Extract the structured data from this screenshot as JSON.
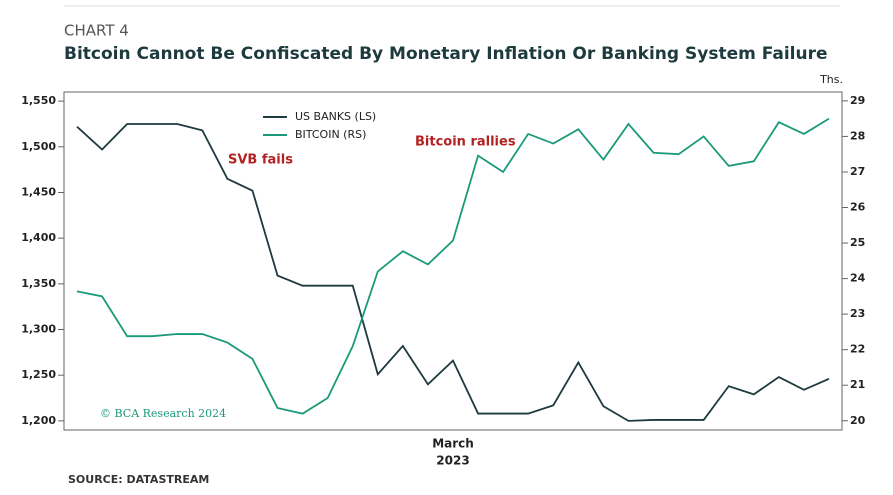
{
  "chart_data": {
    "type": "line",
    "kicker": "CHART 4",
    "title": "Bitcoin Cannot Be Confiscated By Monetary Inflation Or Banking System Failure",
    "source": "SOURCE: DATASTREAM",
    "watermark": "© BCA Research 2024",
    "y2_unit": "Ths.",
    "categories": [
      null,
      null,
      null,
      null,
      null,
      null,
      null,
      null,
      null,
      null,
      null,
      null,
      null,
      null,
      null,
      "March",
      null,
      null,
      null,
      null,
      null,
      null,
      null,
      null,
      null,
      null,
      null,
      null,
      null,
      null,
      null
    ],
    "x_year": "2023",
    "series": [
      {
        "name": "US BANKS (LS)",
        "color": "#1d3a3f",
        "axis": "y",
        "values": [
          1522,
          1497,
          1525,
          1525,
          1525,
          1518,
          1465,
          1452,
          1359,
          1348,
          1348,
          1348,
          1251,
          1282,
          1240,
          1266,
          1208,
          1208,
          1208,
          1217,
          1264,
          1216,
          1200,
          1201,
          1201,
          1201,
          1238,
          1229,
          1248,
          1234,
          1246
        ]
      },
      {
        "name": "BITCOIN (RS)",
        "color": "#1a9a7a",
        "axis": "y2",
        "values": [
          23.64,
          23.5,
          22.38,
          22.38,
          22.44,
          22.44,
          22.2,
          21.74,
          20.36,
          20.2,
          20.64,
          22.1,
          24.2,
          24.77,
          24.4,
          25.07,
          27.46,
          27.0,
          28.07,
          27.8,
          28.2,
          27.35,
          28.35,
          27.54,
          27.5,
          28.0,
          27.17,
          27.3,
          28.4,
          28.07,
          28.5
        ]
      }
    ],
    "ylim": [
      1190,
      1560
    ],
    "yticks": [
      {
        "value": 1200,
        "label": "1,200"
      },
      {
        "value": 1250,
        "label": "1,250"
      },
      {
        "value": 1300,
        "label": "1,300"
      },
      {
        "value": 1350,
        "label": "1,350"
      },
      {
        "value": 1400,
        "label": "1,400"
      },
      {
        "value": 1450,
        "label": "1,450"
      },
      {
        "value": 1500,
        "label": "1,500"
      },
      {
        "value": 1550,
        "label": "1,550"
      }
    ],
    "y2lim": [
      19.74,
      29.25
    ],
    "y2ticks": [
      20,
      21,
      22,
      23,
      24,
      25,
      26,
      27,
      28,
      29
    ],
    "annotations": [
      {
        "text": "SVB fails",
        "color": "#b22222"
      },
      {
        "text": "Bitcoin rallies",
        "color": "#b22222"
      }
    ]
  }
}
